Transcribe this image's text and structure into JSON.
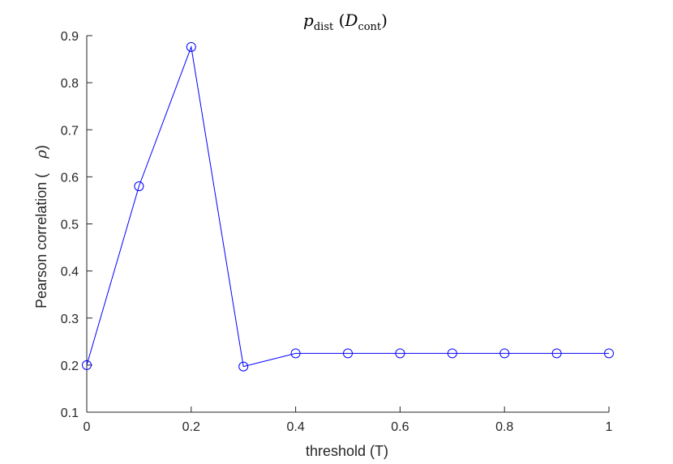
{
  "chart_data": {
    "type": "line",
    "title": {
      "main": "p",
      "main_sub": "dist",
      "arg": "D",
      "arg_sub": "cont"
    },
    "xlabel": "threshold (T)",
    "ylabel": "Pearson correlation (",
    "ylabel_symbol": "ρ",
    "ylabel_close": ")",
    "xlim": [
      0,
      1
    ],
    "ylim": [
      0.1,
      0.9
    ],
    "xticks": [
      0,
      0.2,
      0.4,
      0.6,
      0.8,
      1
    ],
    "xtick_labels": [
      "0",
      "0.2",
      "0.4",
      "0.6",
      "0.8",
      "1"
    ],
    "yticks": [
      0.1,
      0.2,
      0.3,
      0.4,
      0.5,
      0.6,
      0.7,
      0.8,
      0.9
    ],
    "ytick_labels": [
      "0.1",
      "0.2",
      "0.3",
      "0.4",
      "0.5",
      "0.6",
      "0.7",
      "0.8",
      "0.9"
    ],
    "grid": false,
    "series": [
      {
        "color": "#0000ff",
        "marker": "circle",
        "x": [
          0,
          0.1,
          0.2,
          0.3,
          0.4,
          0.5,
          0.6,
          0.7,
          0.8,
          0.9,
          1.0
        ],
        "y": [
          0.2,
          0.58,
          0.876,
          0.197,
          0.225,
          0.225,
          0.225,
          0.225,
          0.225,
          0.225,
          0.225
        ]
      }
    ]
  }
}
